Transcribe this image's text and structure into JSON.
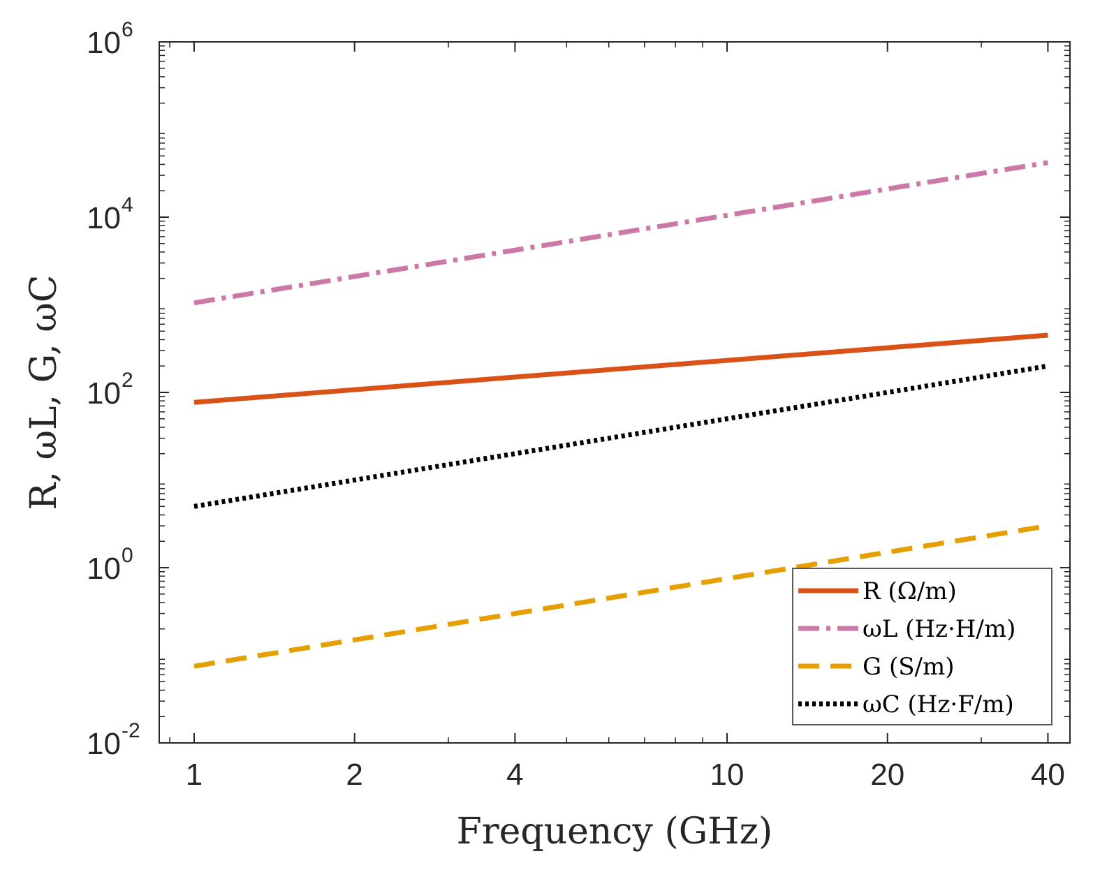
{
  "chart_data": {
    "type": "line",
    "xlabel": "Frequency (GHz)",
    "ylabel": "R, ωL, G, ωC",
    "x_scale": "log",
    "y_scale": "log",
    "xlim": [
      0.86,
      44
    ],
    "ylim": [
      0.01,
      1000000
    ],
    "x_ticks": [
      1,
      2,
      4,
      10,
      20,
      40
    ],
    "x_tick_labels": [
      "1",
      "2",
      "4",
      "10",
      "20",
      "40"
    ],
    "y_ticks": [
      {
        "value": 0.01,
        "base": "10",
        "exp": "-2"
      },
      {
        "value": 1,
        "base": "10",
        "exp": "0"
      },
      {
        "value": 100,
        "base": "10",
        "exp": "2"
      },
      {
        "value": 10000,
        "base": "10",
        "exp": "4"
      },
      {
        "value": 1000000,
        "base": "10",
        "exp": "6"
      }
    ],
    "grid": false,
    "legend_position": "bottom-right",
    "x": [
      1,
      40
    ],
    "series": [
      {
        "name": "R (Ω/m)",
        "values": [
          77,
          450
        ],
        "color": "#D95319",
        "style": "solid"
      },
      {
        "name": "ωL (Hz·H/m)",
        "values": [
          1050,
          42000
        ],
        "color": "#CC79A7",
        "style": "dashdot"
      },
      {
        "name": "G (S/m)",
        "values": [
          0.075,
          3.0
        ],
        "color": "#E69F00",
        "style": "dashed"
      },
      {
        "name": "ωC (Hz·F/m)",
        "values": [
          5.0,
          200
        ],
        "color": "#000000",
        "style": "dotted"
      }
    ]
  }
}
